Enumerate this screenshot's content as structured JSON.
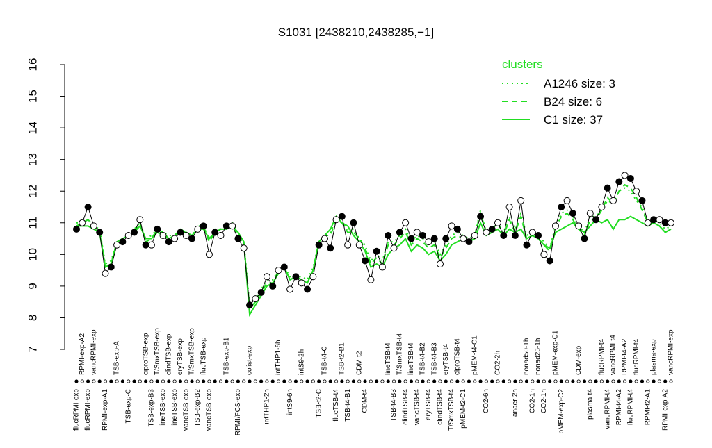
{
  "chart_data": {
    "type": "line",
    "title": "S1031 [2438210,2438285,−1]",
    "legend_title": "clusters",
    "legend_position": "top-right",
    "ylim": [
      7,
      16
    ],
    "yticks": [
      7,
      8,
      9,
      10,
      11,
      12,
      13,
      14,
      15,
      16
    ],
    "x": [
      1,
      2,
      3,
      4,
      5,
      6,
      7,
      8,
      9,
      10,
      11,
      12,
      13,
      14,
      15,
      16,
      17,
      18,
      19,
      20,
      21,
      22,
      23,
      24,
      25,
      26,
      27,
      28,
      29,
      30,
      31,
      32,
      33,
      34,
      35,
      36,
      37,
      38,
      39,
      40,
      41,
      42,
      43,
      44,
      45,
      46,
      47,
      48,
      49,
      50,
      51,
      52,
      53,
      54,
      55,
      56,
      57,
      58,
      59,
      60,
      61,
      62,
      63,
      64,
      65,
      66,
      67,
      68,
      69,
      70,
      71,
      72,
      73,
      74,
      75,
      76,
      77,
      78,
      79,
      80,
      81,
      82,
      83,
      84,
      85,
      86,
      87,
      88,
      89,
      90,
      91,
      92,
      93,
      94,
      95,
      96,
      97,
      98,
      99,
      100,
      101,
      102,
      103,
      104
    ],
    "xlim": [
      1,
      104
    ],
    "categories": [
      "flucRPMI-exp",
      "RPMI-exp-A2",
      "flucRPMI-exp",
      "vancRPMI-exp",
      null,
      "RPMI-exp-A1",
      null,
      "TSB-exp-A",
      null,
      "TSB-exp-C",
      null,
      null,
      "ciproTSB-exp",
      "TSB-exp-B3",
      "T/SmxTSB-exp",
      "lineTSB-exp",
      "clindTSB-exp",
      "lineTSB-exp",
      "eryTSB-exp",
      "vancTSB-exp",
      "T/SmxTSB-exp",
      "TSB-exp-B2",
      "flucTSB-exp",
      "vancTSB-exp",
      null,
      null,
      "TSB-exp-B1",
      null,
      "RPMI/FCS-exp",
      null,
      "colist-exp",
      null,
      null,
      "intTHP1-2h",
      null,
      "intTHP1-6h",
      null,
      "intS9-6h",
      null,
      "intS9-2h",
      null,
      null,
      "TSB-t2-C",
      "TSB-t4-C",
      null,
      "flucTSB-t4",
      "TSB-t2-B1",
      "TSB-t4-B1",
      null,
      "CDM-t2",
      "CDM-t4",
      null,
      null,
      null,
      "lineTSB-t4",
      "TSB-t4-B3",
      "T/SmxTSB-t4",
      "clindTSB-t4",
      "lineTSB-t4",
      "vancTSB-t4",
      "TSB-t4-B2",
      "eryTSB-t4",
      "TSB-t4-B3",
      "clindTSB-t4",
      "eryTSB-t4",
      "T/SmxTSB-t4",
      "ciproTSB-t4",
      "pMEM-t2-C1",
      null,
      "pMEM-t4-C1",
      null,
      "CO2-6h",
      null,
      "CO2-2h",
      null,
      null,
      "anaer-2h",
      null,
      "nonad50-1h",
      "CO2-1h",
      "nonad25-1h",
      "CO2-1h",
      null,
      "pMEM-exp-C1",
      "pMEM-exp-C2",
      null,
      null,
      "CDM-exp",
      null,
      "plasma-t4",
      null,
      "flucRPMI-t4",
      "vancRPMI-t4",
      "vancRPMI-t4",
      "RPMI-t4-A2",
      "RPMI-t4-A2",
      "flucRPMI-t4",
      "flucRPMI-t4",
      null,
      "RPMI-t2-A1",
      "plasma-exp",
      null,
      "RPMI-exp-A2",
      "vancRPMI-exp"
    ],
    "values": [
      10.8,
      11.0,
      11.5,
      10.9,
      10.7,
      9.4,
      9.6,
      10.3,
      10.4,
      10.6,
      10.7,
      11.1,
      10.3,
      10.3,
      10.8,
      10.6,
      10.4,
      10.5,
      10.7,
      10.6,
      10.5,
      10.8,
      10.9,
      10.0,
      10.7,
      10.6,
      10.9,
      10.9,
      10.5,
      10.2,
      8.4,
      8.6,
      8.8,
      9.3,
      9.0,
      9.5,
      9.6,
      8.9,
      9.3,
      9.1,
      8.9,
      9.3,
      10.3,
      10.5,
      10.2,
      11.1,
      11.2,
      10.3,
      11.0,
      10.3,
      9.8,
      9.2,
      10.1,
      9.6,
      10.6,
      10.2,
      10.7,
      11.0,
      10.5,
      10.7,
      10.6,
      10.4,
      10.5,
      9.7,
      10.5,
      10.9,
      10.8,
      10.5,
      10.4,
      10.6,
      11.2,
      10.7,
      10.8,
      11.0,
      10.6,
      11.5,
      10.6,
      11.7,
      10.3,
      10.7,
      10.6,
      10.0,
      9.8,
      10.9,
      11.5,
      11.7,
      11.3,
      10.9,
      10.5,
      11.3,
      11.1,
      11.5,
      12.1,
      11.7,
      12.3,
      12.5,
      12.4,
      12.0,
      11.7,
      11.0,
      11.1,
      11.1,
      11.0,
      11.0
    ],
    "point_color": "#000000",
    "series": [
      {
        "name": "A1246 size: 3",
        "color": "#22dd22",
        "style": "dotted",
        "values": [
          11.0,
          11.0,
          11.1,
          10.9,
          10.8,
          9.7,
          9.8,
          10.4,
          10.5,
          10.6,
          10.8,
          11.0,
          10.5,
          10.6,
          10.8,
          10.7,
          10.6,
          10.6,
          10.8,
          10.7,
          10.6,
          10.9,
          10.9,
          10.5,
          10.8,
          10.8,
          10.9,
          11.0,
          10.7,
          10.4,
          8.4,
          8.6,
          8.9,
          9.2,
          9.2,
          9.5,
          9.6,
          9.3,
          9.3,
          9.3,
          9.2,
          9.6,
          10.4,
          10.6,
          10.7,
          11.1,
          11.0,
          10.8,
          10.8,
          10.5,
          10.3,
          9.8,
          10.0,
          9.8,
          10.4,
          10.4,
          10.6,
          10.8,
          10.4,
          10.6,
          10.5,
          10.3,
          10.4,
          10.0,
          10.3,
          10.6,
          10.7,
          10.6,
          10.5,
          10.6,
          11.4,
          10.7,
          10.8,
          11.0,
          10.7,
          11.2,
          10.8,
          11.3,
          10.6,
          10.7,
          10.6,
          10.4,
          10.2,
          10.9,
          11.3,
          11.4,
          11.2,
          10.9,
          10.7,
          11.2,
          11.2,
          11.4,
          11.7,
          11.6,
          12.0,
          12.1,
          12.0,
          11.7,
          11.5,
          11.0,
          11.1,
          11.0,
          10.8,
          10.9
        ]
      },
      {
        "name": "B24 size: 6",
        "color": "#22dd22",
        "style": "dashed",
        "values": [
          10.9,
          11.0,
          11.1,
          10.9,
          10.8,
          9.6,
          9.7,
          10.4,
          10.5,
          10.6,
          10.7,
          11.0,
          10.4,
          10.5,
          10.8,
          10.7,
          10.5,
          10.6,
          10.8,
          10.7,
          10.6,
          10.8,
          10.9,
          10.4,
          10.7,
          10.8,
          10.9,
          10.9,
          10.6,
          10.3,
          8.3,
          8.5,
          8.8,
          9.1,
          9.1,
          9.5,
          9.6,
          9.2,
          9.3,
          9.2,
          9.1,
          9.5,
          10.4,
          10.6,
          10.6,
          11.1,
          11.0,
          10.7,
          10.7,
          10.5,
          10.2,
          9.7,
          9.9,
          9.7,
          10.3,
          10.3,
          10.5,
          10.7,
          10.3,
          10.5,
          10.4,
          10.2,
          10.3,
          9.9,
          10.2,
          10.5,
          10.6,
          10.5,
          10.4,
          10.6,
          11.3,
          10.7,
          10.8,
          11.0,
          10.6,
          11.1,
          10.7,
          11.2,
          10.5,
          10.6,
          10.5,
          10.3,
          10.1,
          10.8,
          11.2,
          11.3,
          11.1,
          10.8,
          10.6,
          11.1,
          11.1,
          11.4,
          11.8,
          11.6,
          12.0,
          12.2,
          12.1,
          11.8,
          11.4,
          11.0,
          11.0,
          10.9,
          10.7,
          10.8
        ]
      },
      {
        "name": "C1 size: 37",
        "color": "#22dd22",
        "style": "solid",
        "values": [
          10.9,
          10.9,
          10.9,
          10.8,
          10.7,
          9.6,
          9.7,
          10.4,
          10.5,
          10.6,
          10.7,
          10.9,
          10.5,
          10.5,
          10.7,
          10.6,
          10.5,
          10.6,
          10.7,
          10.7,
          10.6,
          10.8,
          10.8,
          10.5,
          10.7,
          10.8,
          10.8,
          10.9,
          10.7,
          10.4,
          8.1,
          8.4,
          8.7,
          9.0,
          9.1,
          9.4,
          9.6,
          9.2,
          9.3,
          9.2,
          9.1,
          9.5,
          10.4,
          10.6,
          10.8,
          11.2,
          11.0,
          10.9,
          10.6,
          10.4,
          10.1,
          9.6,
          9.7,
          9.6,
          10.0,
          10.2,
          10.3,
          10.5,
          10.1,
          10.3,
          10.2,
          10.0,
          10.1,
          9.8,
          10.0,
          10.3,
          10.4,
          10.5,
          10.4,
          10.5,
          11.0,
          10.6,
          10.7,
          10.8,
          10.6,
          10.8,
          10.7,
          10.8,
          10.5,
          10.6,
          10.5,
          10.3,
          10.2,
          10.7,
          10.8,
          10.9,
          11.0,
          10.8,
          10.7,
          10.9,
          11.1,
          11.0,
          11.1,
          10.8,
          11.1,
          11.1,
          11.2,
          11.1,
          11.0,
          10.9,
          11.0,
          10.9,
          10.7,
          10.8
        ]
      }
    ]
  }
}
